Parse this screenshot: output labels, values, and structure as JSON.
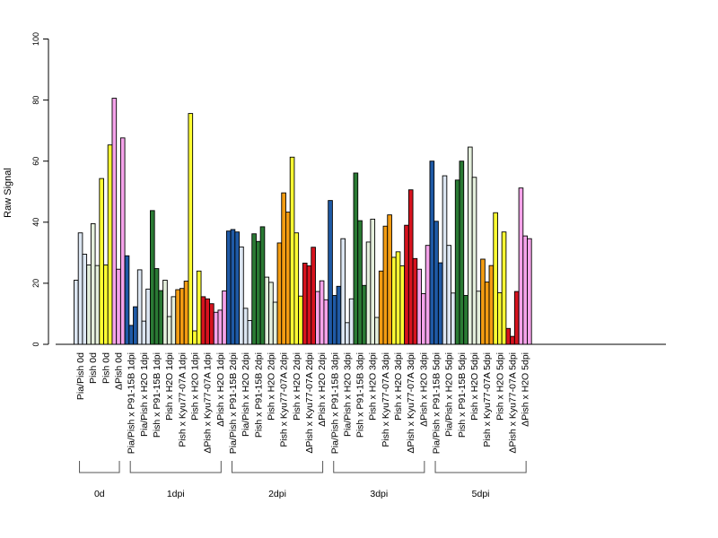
{
  "chart_data": {
    "type": "bar",
    "ylabel": "Raw Signal",
    "ylim": [
      0,
      100
    ],
    "yticks": [
      0,
      20,
      40,
      60,
      80,
      100
    ],
    "grid": false,
    "legend": "none",
    "colors": {
      "Pia/Pish": "#dce6f2",
      "Pia/Pish x P91-15B": "#1f5aa6",
      "Pia/Pish x H2O": "#dce6f2",
      "Pish": "#e4efdc",
      "Pish x P91-15B": "#2a7a34",
      "Pish x H2O": "#e4efdc",
      "Pish x Kyu77-07A": "#f39c12",
      "Pish yellow": "#ffff33",
      "ΔPish": "#f5a3ea",
      "ΔPish x Kyu77-07A": "#d7131e",
      "ΔPish x H2O": "#f5a3ea",
      "Pish x H2O 0d": "#e4efdc"
    },
    "categories": [
      {
        "label": "Pia/Pish 0d",
        "color": "#dce6f2",
        "values": [
          21,
          36.5,
          29.5
        ]
      },
      {
        "label": "Pish 0d",
        "color": "#e4efdc",
        "values": [
          26,
          39.5,
          25.8
        ]
      },
      {
        "label": "Pish 0d",
        "color": "#ffff33",
        "values": [
          54.3,
          26,
          65.3
        ]
      },
      {
        "label": "ΔPish 0d",
        "color": "#f5a3ea",
        "values": [
          80.6,
          24.6,
          67.6
        ]
      },
      {
        "label": "Pia/Pish x P91-15B 1dpi",
        "color": "#1f5aa6",
        "values": [
          29,
          6.2,
          12.3
        ]
      },
      {
        "label": "Pia/Pish x H2O 1dpi",
        "color": "#dce6f2",
        "values": [
          24.4,
          7.6,
          18.1
        ]
      },
      {
        "label": "Pish x P91-15B 1dpi",
        "color": "#2a7a34",
        "values": [
          43.8,
          24.8,
          17.6
        ]
      },
      {
        "label": "Pish x H2O 1dpi",
        "color": "#e4efdc",
        "values": [
          21,
          9.1,
          15.6
        ]
      },
      {
        "label": "Pish x Kyu77-07A 1dpi",
        "color": "#f39c12",
        "values": [
          17.9,
          18.3,
          20.7
        ]
      },
      {
        "label": "Pish x H2O 1dpi",
        "color": "#ffff33",
        "values": [
          75.6,
          4.4,
          24
        ]
      },
      {
        "label": "ΔPish x Kyu77-07A 1dpi",
        "color": "#d7131e",
        "values": [
          15.6,
          14.9,
          13.3
        ]
      },
      {
        "label": "ΔPish x H2O 1dpi",
        "color": "#f5a3ea",
        "values": [
          10.5,
          11.2,
          17.5
        ]
      },
      {
        "label": "Pia/Pish x P91-15B 2dpi",
        "color": "#1f5aa6",
        "values": [
          37.1,
          37.6,
          36.8
        ]
      },
      {
        "label": "Pia/Pish x H2O 2dpi",
        "color": "#dce6f2",
        "values": [
          31.9,
          11.8,
          7.8
        ]
      },
      {
        "label": "Pish x P91-15B 2dpi",
        "color": "#2a7a34",
        "values": [
          36.2,
          33.7,
          38.5
        ]
      },
      {
        "label": "Pish x H2O 2dpi",
        "color": "#e4efdc",
        "values": [
          22,
          20.3,
          13.8
        ]
      },
      {
        "label": "Pish x Kyu77-07A 2dpi",
        "color": "#f39c12",
        "values": [
          33.2,
          49.6,
          43.3
        ]
      },
      {
        "label": "Pish x H2O 2dpi",
        "color": "#ffff33",
        "values": [
          61.3,
          36.5,
          15.8
        ]
      },
      {
        "label": "ΔPish x Kyu77-07A 2dpi",
        "color": "#d7131e",
        "values": [
          26.6,
          25.7,
          31.8
        ]
      },
      {
        "label": "ΔPish x H2O 2dpi",
        "color": "#f5a3ea",
        "values": [
          17.3,
          20.8,
          14.6
        ]
      },
      {
        "label": "Pia/Pish x P91-15B 3dpi",
        "color": "#1f5aa6",
        "values": [
          47.1,
          16,
          19
        ]
      },
      {
        "label": "Pia/Pish x H2O 3dpi",
        "color": "#dce6f2",
        "values": [
          34.6,
          7.1,
          14.9
        ]
      },
      {
        "label": "Pish x P91-15B 3dpi",
        "color": "#2a7a34",
        "values": [
          56.1,
          40.5,
          19.3
        ]
      },
      {
        "label": "Pish x H2O 3dpi",
        "color": "#e4efdc",
        "values": [
          33.5,
          41,
          8.8
        ]
      },
      {
        "label": "Pish x Kyu77-07A 3dpi",
        "color": "#f39c12",
        "values": [
          24,
          38.7,
          42.4
        ]
      },
      {
        "label": "Pish x H2O 3dpi",
        "color": "#ffff33",
        "values": [
          28.5,
          30.3,
          25.7
        ]
      },
      {
        "label": "ΔPish x Kyu77-07A 3dpi",
        "color": "#d7131e",
        "values": [
          39,
          50.6,
          28.1
        ]
      },
      {
        "label": "ΔPish x H2O 3dpi",
        "color": "#f5a3ea",
        "values": [
          24.6,
          16.6,
          32.4
        ]
      },
      {
        "label": "Pia/Pish x P91-15B 5dpi",
        "color": "#1f5aa6",
        "values": [
          60,
          40.3,
          26.7
        ]
      },
      {
        "label": "Pia/Pish x H2O 5dpi",
        "color": "#dce6f2",
        "values": [
          55.2,
          32.4,
          16.8
        ]
      },
      {
        "label": "Pish x P91-15B 5dpi",
        "color": "#2a7a34",
        "values": [
          53.8,
          60,
          16
        ]
      },
      {
        "label": "Pish x H2O 5dpi",
        "color": "#e4efdc",
        "values": [
          64.6,
          54.7,
          17.4
        ]
      },
      {
        "label": "Pish x Kyu77-07A 5dpi",
        "color": "#f39c12",
        "values": [
          27.9,
          20.4,
          25.8
        ]
      },
      {
        "label": "Pish x H2O 5dpi",
        "color": "#ffff33",
        "values": [
          43.1,
          16.9,
          36.8
        ]
      },
      {
        "label": "ΔPish x Kyu77-07A 5dpi",
        "color": "#d7131e",
        "values": [
          5.2,
          2.6,
          17.3
        ]
      },
      {
        "label": "ΔPish x H2O 5dpi",
        "color": "#f5a3ea",
        "values": [
          51.2,
          35.5,
          34.6
        ]
      }
    ],
    "groups": [
      {
        "label": "0d",
        "from": 0,
        "to": 3
      },
      {
        "label": "1dpi",
        "from": 4,
        "to": 11
      },
      {
        "label": "2dpi",
        "from": 12,
        "to": 19
      },
      {
        "label": "3dpi",
        "from": 20,
        "to": 27
      },
      {
        "label": "5dpi",
        "from": 28,
        "to": 35
      }
    ]
  }
}
